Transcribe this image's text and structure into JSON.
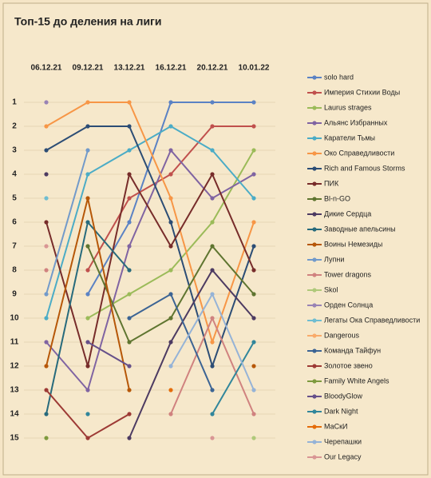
{
  "chart_data": {
    "type": "bump",
    "title": "Топ-15 до деления на лиги",
    "categories": [
      "06.12.21",
      "09.12.21",
      "13.12.21",
      "16.12.21",
      "20.12.21",
      "10.01.22"
    ],
    "ylim": [
      16,
      0
    ],
    "yticks": [
      1,
      2,
      3,
      4,
      5,
      6,
      7,
      8,
      9,
      10,
      11,
      12,
      13,
      14,
      15
    ],
    "grid": true,
    "series": [
      {
        "name": "solo hard",
        "color": "#5b82c4",
        "values": [
          null,
          9,
          6,
          1,
          1,
          1
        ]
      },
      {
        "name": "Империя Стихии Воды",
        "color": "#c0504d",
        "values": [
          null,
          8,
          5,
          4,
          2,
          2
        ]
      },
      {
        "name": "Laurus strages",
        "color": "#9bbb59",
        "values": [
          null,
          10,
          9,
          8,
          6,
          3
        ]
      },
      {
        "name": "Альянс Избранных",
        "color": "#8064a2",
        "values": [
          11,
          13,
          7,
          3,
          5,
          4
        ]
      },
      {
        "name": "Каратели Тьмы",
        "color": "#4bacc6",
        "values": [
          10,
          4,
          3,
          2,
          3,
          5
        ]
      },
      {
        "name": "Око Справедливости",
        "color": "#f79646",
        "values": [
          2,
          1,
          1,
          5,
          11,
          6
        ]
      },
      {
        "name": "Rich and Famous Storms",
        "color": "#2c4d75",
        "values": [
          3,
          2,
          2,
          6,
          12,
          7
        ]
      },
      {
        "name": "ПИК",
        "color": "#772c2a",
        "values": [
          6,
          12,
          4,
          7,
          4,
          8
        ]
      },
      {
        "name": "Bl-n-GO",
        "color": "#5f7530",
        "values": [
          null,
          7,
          11,
          10,
          7,
          9
        ]
      },
      {
        "name": "Дикие Сердца",
        "color": "#4d3b62",
        "values": [
          4,
          null,
          15,
          11,
          8,
          10
        ]
      },
      {
        "name": "Заводные апельсины",
        "color": "#276a7c",
        "values": [
          14,
          6,
          8,
          null,
          null,
          null
        ]
      },
      {
        "name": "Воины Немезиды",
        "color": "#b65708",
        "values": [
          12,
          5,
          13,
          null,
          null,
          12
        ]
      },
      {
        "name": "Лупни",
        "color": "#729aca",
        "values": [
          9,
          3,
          null,
          null,
          null,
          null
        ]
      },
      {
        "name": "Tower dragons",
        "color": "#d0827f",
        "values": [
          8,
          null,
          null,
          14,
          10,
          14
        ]
      },
      {
        "name": "Skol",
        "color": "#afc97a",
        "values": [
          null,
          null,
          null,
          null,
          null,
          15
        ]
      },
      {
        "name": "Орден Солнца",
        "color": "#9983b5",
        "values": [
          1,
          null,
          null,
          null,
          null,
          null
        ]
      },
      {
        "name": "Легаты Ока Справедливости",
        "color": "#6fbdd1",
        "values": [
          5,
          null,
          null,
          null,
          null,
          null
        ]
      },
      {
        "name": "Dangerous",
        "color": "#f9ab6b",
        "values": [
          null,
          null,
          null,
          null,
          null,
          null
        ]
      },
      {
        "name": "Команда Тайфун",
        "color": "#3c6494",
        "values": [
          null,
          null,
          10,
          9,
          13,
          null
        ]
      },
      {
        "name": "Золотое звено",
        "color": "#9d3a35",
        "values": [
          13,
          15,
          14,
          null,
          null,
          null
        ]
      },
      {
        "name": "Family White Angels",
        "color": "#7e9a3e",
        "values": [
          15,
          null,
          null,
          null,
          null,
          null
        ]
      },
      {
        "name": "BloodyGlow",
        "color": "#66508a",
        "values": [
          null,
          11,
          12,
          null,
          null,
          null
        ]
      },
      {
        "name": "Dark Night",
        "color": "#31869b",
        "values": [
          null,
          14,
          null,
          null,
          14,
          11
        ]
      },
      {
        "name": "МаСкИ",
        "color": "#e46c0a",
        "values": [
          null,
          null,
          null,
          13,
          null,
          null
        ]
      },
      {
        "name": "Черепашки",
        "color": "#95b3d7",
        "values": [
          null,
          null,
          null,
          12,
          9,
          13
        ]
      },
      {
        "name": "Our Legacy",
        "color": "#d99694",
        "values": [
          7,
          null,
          null,
          null,
          15,
          null
        ]
      }
    ]
  }
}
